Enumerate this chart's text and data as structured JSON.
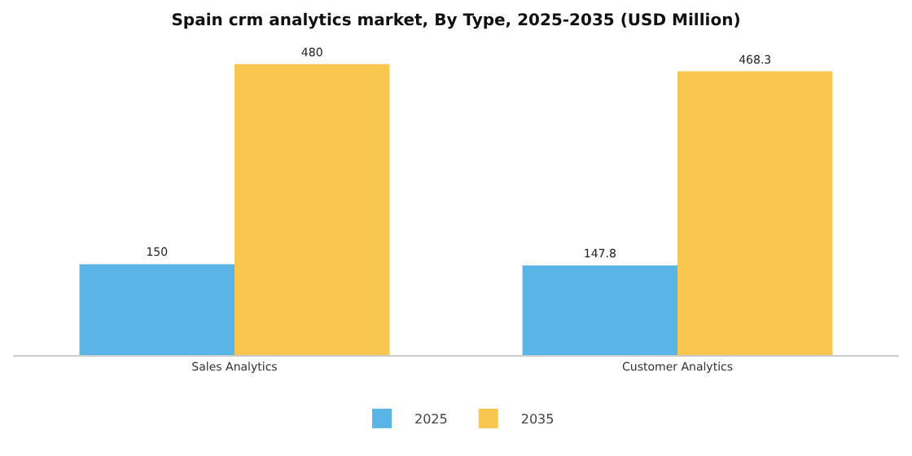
{
  "chart_data": {
    "type": "bar",
    "title": "Spain crm analytics market, By Type, 2025-2035 (USD Million)",
    "categories": [
      "Sales Analytics",
      "Customer Analytics"
    ],
    "series": [
      {
        "name": "2025",
        "color": "#5ab4e5",
        "values": [
          150,
          147.8
        ]
      },
      {
        "name": "2035",
        "color": "#f9c64f",
        "values": [
          480,
          468.3
        ]
      }
    ],
    "data_labels": true,
    "legend": "bottom",
    "grid": false,
    "tick_labels": "x"
  }
}
